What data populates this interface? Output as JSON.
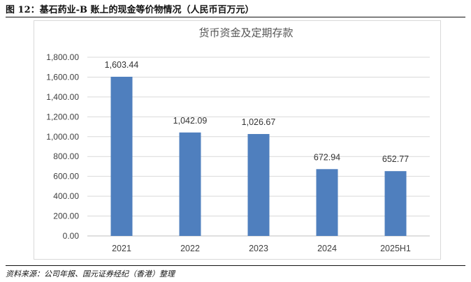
{
  "figure": {
    "title": "图 12：基石药业-B 账上的现金等价物情况（人民币百万元）",
    "source": "资料来源：公司年报、国元证券经纪（香港）整理"
  },
  "chart_data": {
    "type": "bar",
    "title": "货币资金及定期存款",
    "categories": [
      "2021",
      "2022",
      "2023",
      "2024",
      "2025H1"
    ],
    "values": [
      1603.44,
      1042.09,
      1026.67,
      672.94,
      652.77
    ],
    "data_labels": [
      "1,603.44",
      "1,042.09",
      "1,026.67",
      "672.94",
      "652.77"
    ],
    "ylim": [
      0,
      1800
    ],
    "yticks": [
      0,
      200,
      400,
      600,
      800,
      1000,
      1200,
      1400,
      1600,
      1800
    ],
    "ytick_labels": [
      "0.00",
      "200.00",
      "400.00",
      "600.00",
      "800.00",
      "1,000.00",
      "1,200.00",
      "1,400.00",
      "1,600.00",
      "1,800.00"
    ],
    "xlabel": "",
    "ylabel": "",
    "grid": true,
    "legend": "none",
    "bar_color": "#4f7fbe",
    "grid_color": "#d9d9d9"
  }
}
